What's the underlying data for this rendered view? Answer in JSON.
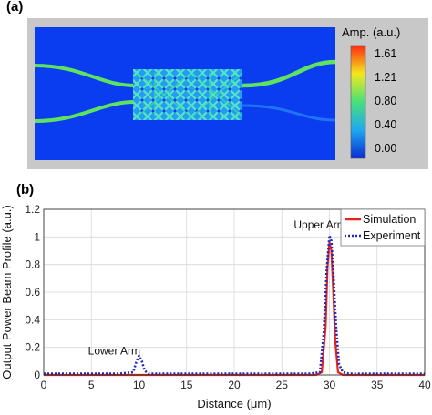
{
  "panels": {
    "a_label": "(a)",
    "b_label": "(b)"
  },
  "field_map": {
    "colorbar_title": "Amp. (a.u.)",
    "colorbar_ticks": [
      "1.61",
      "1.21",
      "0.80",
      "0.40",
      "0.00"
    ],
    "colors": {
      "background": "#0a3cf0",
      "guide": "#5fe35f",
      "guide_faint": "#2a8cf5",
      "cbar_low": "#0a2bd6",
      "cbar_mid": "#48e07a",
      "cbar_high": "#ff2a10"
    }
  },
  "chart_data": {
    "type": "line",
    "xlabel": "Distance (μm)",
    "ylabel": "Output Power Beam Profile (a.u.)",
    "xlim": [
      0,
      40
    ],
    "ylim": [
      0,
      1.2
    ],
    "xticks": [
      "0",
      "5",
      "10",
      "15",
      "20",
      "25",
      "30",
      "35",
      "40"
    ],
    "yticks": [
      "0",
      "0.2",
      "0.4",
      "0.6",
      "0.8",
      "1",
      "1.2"
    ],
    "grid": true,
    "legend_position": "top-right",
    "annotations": [
      {
        "text": "Upper Arm",
        "x": 29,
        "y": 1.06
      },
      {
        "text": "Lower Arm",
        "x": 7.4,
        "y": 0.15
      }
    ],
    "series": [
      {
        "name": "Simulation",
        "color": "#e8231d",
        "style": "solid",
        "x": [
          0,
          28.6,
          29.2,
          29.6,
          29.8,
          30.0,
          30.2,
          30.4,
          30.6,
          30.9,
          31.4,
          40
        ],
        "y": [
          0,
          0,
          0.02,
          0.35,
          0.78,
          0.96,
          0.9,
          0.6,
          0.25,
          0.02,
          0,
          0
        ]
      },
      {
        "name": "Experiment",
        "color": "#1f2bb8",
        "style": "dotted",
        "x": [
          0,
          2,
          4,
          6,
          8,
          9.4,
          9.7,
          10.0,
          10.3,
          10.6,
          11.0,
          12,
          14,
          16,
          18,
          20,
          22,
          24,
          26,
          28,
          29.0,
          29.4,
          29.7,
          30.0,
          30.2,
          30.4,
          30.7,
          31.0,
          31.4,
          32,
          34,
          36,
          38,
          40
        ],
        "y": [
          0.01,
          0.01,
          0.01,
          0.01,
          0.01,
          0.02,
          0.09,
          0.14,
          0.1,
          0.03,
          0.01,
          0.01,
          0.01,
          0.01,
          0.01,
          0.01,
          0.01,
          0.01,
          0.01,
          0.01,
          0.02,
          0.3,
          0.75,
          1.01,
          0.97,
          0.75,
          0.35,
          0.08,
          0.02,
          0.01,
          0.01,
          0.01,
          0.01,
          0.01
        ]
      }
    ]
  }
}
